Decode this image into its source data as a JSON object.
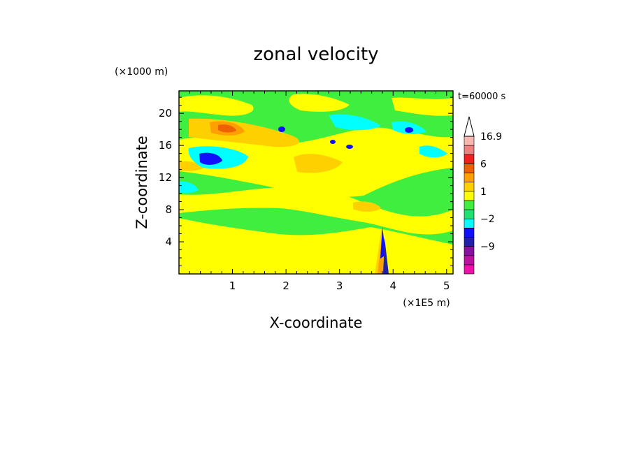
{
  "chart_data": {
    "type": "heatmap",
    "title": "zonal velocity",
    "xlabel": "X-coordinate",
    "ylabel": "Z-coordinate",
    "x_unit": "(×1E5 m)",
    "y_unit": "(×1000 m)",
    "time_label": "t=60000 s",
    "xlim": [
      0,
      5.12
    ],
    "ylim": [
      0,
      22.8
    ],
    "x_ticks": [
      1,
      2,
      3,
      4,
      5
    ],
    "y_ticks": [
      4,
      8,
      12,
      16,
      20
    ],
    "grid": false,
    "colorbar": {
      "position": "right",
      "levels": [
        -16,
        -12,
        -9,
        -6,
        -4,
        -2,
        -1,
        0,
        1,
        2,
        4,
        6,
        9,
        12,
        16.9
      ],
      "colors": [
        "#ee10aa",
        "#bb10a0",
        "#8a10a0",
        "#2020a8",
        "#1010ff",
        "#00ffff",
        "#20e070",
        "#40ee40",
        "#ffff00",
        "#ffd000",
        "#ffa000",
        "#ee6000",
        "#ee2020",
        "#f08080",
        "#f8b8b0"
      ],
      "labels": [
        {
          "text": "16.9",
          "value": 16.9
        },
        {
          "text": "6",
          "value": 6
        },
        {
          "text": "1",
          "value": 1
        },
        {
          "text": "−2",
          "value": -2
        },
        {
          "text": "−9",
          "value": -9
        }
      ]
    },
    "features": [
      {
        "x": 0.8,
        "z": 18.6,
        "u": 5
      },
      {
        "x": 0.5,
        "z": 14.4,
        "u": -4
      },
      {
        "x": 3.8,
        "z": 4,
        "u": -6
      }
    ]
  }
}
